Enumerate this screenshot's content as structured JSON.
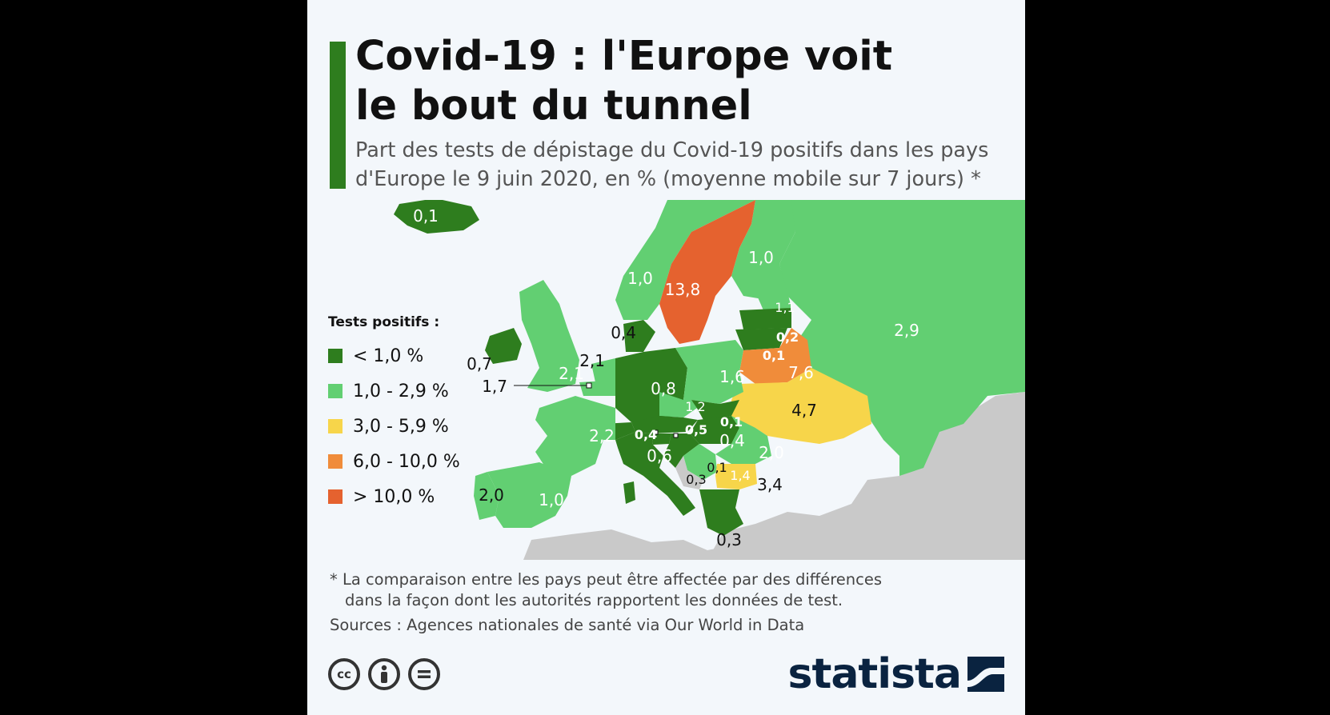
{
  "title_line1": "Covid-19 : l'Europe voit",
  "title_line2": "le bout du tunnel",
  "subtitle_line1": "Part des tests de dépistage du Covid-19 positifs dans les pays",
  "subtitle_line2": "d'Europe le 9 juin 2020, en % (moyenne mobile sur 7 jours) *",
  "legend": {
    "title": "Tests positifs :",
    "items": [
      {
        "label": "< 1,0 %",
        "color": "#2e7d1e"
      },
      {
        "label": "1,0 - 2,9 %",
        "color": "#62cf72"
      },
      {
        "label": "3,0 - 5,9 %",
        "color": "#f7d54a"
      },
      {
        "label": "6,0 - 10,0 %",
        "color": "#f08c3a"
      },
      {
        "label": "> 10,0 %",
        "color": "#e5622f"
      }
    ]
  },
  "countries": [
    {
      "name": "Islande",
      "value": "0,1",
      "color": "#2e7d1e"
    },
    {
      "name": "Norvège",
      "value": "1,0",
      "color": "#62cf72"
    },
    {
      "name": "Suède",
      "value": "13,8",
      "color": "#e5622f"
    },
    {
      "name": "Finlande",
      "value": "1,0",
      "color": "#62cf72"
    },
    {
      "name": "Russie",
      "value": "2,9",
      "color": "#62cf72"
    },
    {
      "name": "Estonie",
      "value": "1,1",
      "color": "#62cf72"
    },
    {
      "name": "Lettonie",
      "value": "0,2",
      "color": "#2e7d1e"
    },
    {
      "name": "Lituanie",
      "value": "0,1",
      "color": "#2e7d1e"
    },
    {
      "name": "Biélorussie",
      "value": "7,6",
      "color": "#f08c3a"
    },
    {
      "name": "Danemark",
      "value": "0,4",
      "color": "#2e7d1e"
    },
    {
      "name": "Irlande",
      "value": "0,7",
      "color": "#2e7d1e"
    },
    {
      "name": "Royaume-Uni",
      "value": "2,1",
      "color": "#62cf72"
    },
    {
      "name": "Pays-Bas",
      "value": "2,1",
      "color": "#62cf72"
    },
    {
      "name": "Belgique",
      "value": "1,7",
      "color": "#62cf72"
    },
    {
      "name": "Allemagne",
      "value": "0,8",
      "color": "#2e7d1e"
    },
    {
      "name": "Pologne",
      "value": "1,6",
      "color": "#62cf72"
    },
    {
      "name": "Ukraine",
      "value": "4,7",
      "color": "#f7d54a"
    },
    {
      "name": "Tchéquie",
      "value": "1,2",
      "color": "#62cf72"
    },
    {
      "name": "Slovaquie",
      "value": "0,1",
      "color": "#2e7d1e"
    },
    {
      "name": "Autriche",
      "value": "0,5",
      "color": "#2e7d1e"
    },
    {
      "name": "Hongrie",
      "value": "0,4",
      "color": "#2e7d1e"
    },
    {
      "name": "Suisse",
      "value": "0,4",
      "color": "#2e7d1e"
    },
    {
      "name": "France",
      "value": "2,2",
      "color": "#62cf72"
    },
    {
      "name": "Italie",
      "value": "0,6",
      "color": "#2e7d1e"
    },
    {
      "name": "Roumanie",
      "value": "2,0",
      "color": "#62cf72"
    },
    {
      "name": "Slovénie",
      "value": "0,3",
      "color": "#2e7d1e"
    },
    {
      "name": "Croatie",
      "value": "0,1",
      "color": "#2e7d1e"
    },
    {
      "name": "Serbie",
      "value": "1,4",
      "color": "#62cf72"
    },
    {
      "name": "Bulgarie",
      "value": "3,4",
      "color": "#f7d54a"
    },
    {
      "name": "Portugal",
      "value": "2,0",
      "color": "#62cf72"
    },
    {
      "name": "Espagne",
      "value": "1,0",
      "color": "#62cf72"
    },
    {
      "name": "Grèce",
      "value": "0,3",
      "color": "#2e7d1e"
    }
  ],
  "footnote_line1": "* La comparaison entre les pays peut être affectée par des différences",
  "footnote_line2": "dans la façon dont les autorités rapportent les données de test.",
  "sources": "Sources : Agences nationales de santé via Our World in Data",
  "license_icons": [
    "cc-icon",
    "by-person-icon",
    "nd-equals-icon"
  ],
  "brand": "statista"
}
